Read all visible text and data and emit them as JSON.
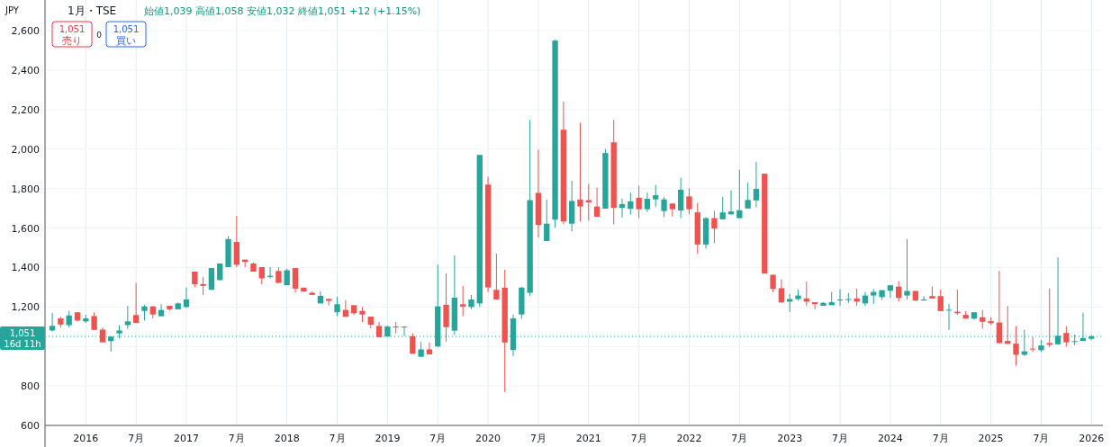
{
  "chart_data": {
    "type": "candlestick",
    "title": "1月・TSE",
    "subtitle": "始値1,039 高値1,058 安値1,032 終値1,051 +12 (+1.15%)",
    "ylabel": "JPY",
    "annotations": [
      "1,051 売り",
      "0",
      "1,051 買い",
      "16d 11h"
    ],
    "x": [
      "2015-09",
      "2015-10",
      "2015-11",
      "2015-12",
      "2016-01",
      "2016-02",
      "2016-03",
      "2016-04",
      "2016-05",
      "2016-06",
      "2016-07",
      "2016-08",
      "2016-09",
      "2016-10",
      "2016-11",
      "2016-12",
      "2017-01",
      "2017-02",
      "2017-03",
      "2017-04",
      "2017-05",
      "2017-06",
      "2017-07",
      "2017-08",
      "2017-09",
      "2017-10",
      "2017-11",
      "2017-12",
      "2018-01",
      "2018-02",
      "2018-03",
      "2018-04",
      "2018-05",
      "2018-06",
      "2018-07",
      "2018-08",
      "2018-09",
      "2018-10",
      "2018-11",
      "2018-12",
      "2019-01",
      "2019-02",
      "2019-03",
      "2019-04",
      "2019-05",
      "2019-06",
      "2019-07",
      "2019-08",
      "2019-09",
      "2019-10",
      "2019-11",
      "2019-12",
      "2020-01",
      "2020-02",
      "2020-03",
      "2020-04",
      "2020-05",
      "2020-06",
      "2020-07",
      "2020-08",
      "2020-09",
      "2020-10",
      "2020-11",
      "2020-12",
      "2021-01",
      "2021-02",
      "2021-03",
      "2021-04",
      "2021-05",
      "2021-06",
      "2021-07",
      "2021-08",
      "2021-09",
      "2021-10",
      "2021-11",
      "2021-12",
      "2022-01",
      "2022-02",
      "2022-03",
      "2022-04",
      "2022-05",
      "2022-06",
      "2022-07",
      "2022-08",
      "2022-09",
      "2022-10",
      "2022-11",
      "2022-12",
      "2023-01",
      "2023-02",
      "2023-03",
      "2023-04",
      "2023-05",
      "2023-06",
      "2023-07",
      "2023-08",
      "2023-09",
      "2023-10",
      "2023-11",
      "2023-12",
      "2024-01",
      "2024-02",
      "2024-03",
      "2024-04",
      "2024-05",
      "2024-06",
      "2024-07",
      "2024-08",
      "2024-09",
      "2024-10",
      "2024-11",
      "2024-12",
      "2025-01",
      "2025-02",
      "2025-03",
      "2025-04",
      "2025-05",
      "2025-06",
      "2025-07",
      "2025-08",
      "2025-09",
      "2025-10",
      "2025-11",
      "2025-12",
      "2026-01"
    ],
    "ohlc": [
      [
        1081,
        1170,
        1075,
        1104
      ],
      [
        1142,
        1150,
        1096,
        1111
      ],
      [
        1108,
        1180,
        1096,
        1157
      ],
      [
        1173,
        1173,
        1127,
        1131
      ],
      [
        1127,
        1160,
        1119,
        1142
      ],
      [
        1154,
        1173,
        1084,
        1084
      ],
      [
        1085,
        1096,
        1021,
        1021
      ],
      [
        1027,
        1050,
        974,
        1050
      ],
      [
        1066,
        1108,
        1040,
        1081
      ],
      [
        1108,
        1206,
        1089,
        1127
      ],
      [
        1159,
        1321,
        1119,
        1119
      ],
      [
        1180,
        1211,
        1131,
        1203
      ],
      [
        1203,
        1203,
        1142,
        1162
      ],
      [
        1153,
        1214,
        1153,
        1185
      ],
      [
        1206,
        1206,
        1183,
        1188
      ],
      [
        1188,
        1223,
        1188,
        1218
      ],
      [
        1200,
        1298,
        1195,
        1238
      ],
      [
        1379,
        1379,
        1299,
        1315
      ],
      [
        1316,
        1353,
        1260,
        1307
      ],
      [
        1287,
        1397,
        1287,
        1397
      ],
      [
        1336,
        1420,
        1336,
        1420
      ],
      [
        1402,
        1559,
        1402,
        1544
      ],
      [
        1529,
        1661,
        1402,
        1414
      ],
      [
        1440,
        1440,
        1402,
        1428
      ],
      [
        1420,
        1425,
        1379,
        1379
      ],
      [
        1402,
        1402,
        1315,
        1345
      ],
      [
        1352,
        1402,
        1345,
        1358
      ],
      [
        1382,
        1402,
        1322,
        1322
      ],
      [
        1310,
        1394,
        1310,
        1386
      ],
      [
        1397,
        1397,
        1272,
        1293
      ],
      [
        1298,
        1298,
        1278,
        1278
      ],
      [
        1272,
        1278,
        1261,
        1261
      ],
      [
        1218,
        1279,
        1218,
        1256
      ],
      [
        1241,
        1241,
        1208,
        1231
      ],
      [
        1173,
        1252,
        1153,
        1214
      ],
      [
        1185,
        1234,
        1150,
        1150
      ],
      [
        1209,
        1209,
        1160,
        1168
      ],
      [
        1180,
        1200,
        1124,
        1162
      ],
      [
        1151,
        1151,
        1092,
        1110
      ],
      [
        1104,
        1124,
        1047,
        1047
      ],
      [
        1050,
        1105,
        1050,
        1101
      ],
      [
        1101,
        1124,
        1066,
        1098
      ],
      [
        1098,
        1101,
        1053,
        1101
      ],
      [
        1052,
        1066,
        963,
        963
      ],
      [
        948,
        1023,
        948,
        985
      ],
      [
        985,
        1020,
        960,
        960
      ],
      [
        1000,
        1415,
        997,
        1203
      ],
      [
        1211,
        1371,
        1025,
        1098
      ],
      [
        1080,
        1462,
        1058,
        1247
      ],
      [
        1214,
        1307,
        1153,
        1202
      ],
      [
        1200,
        1261,
        1189,
        1238
      ],
      [
        1218,
        1970,
        1200,
        1970
      ],
      [
        1820,
        1859,
        1276,
        1299
      ],
      [
        1287,
        1470,
        1238,
        1238
      ],
      [
        1298,
        1389,
        769,
        1020
      ],
      [
        982,
        1162,
        952,
        1142
      ],
      [
        1162,
        1302,
        1139,
        1298
      ],
      [
        1272,
        2148,
        1256,
        1741
      ],
      [
        1778,
        1997,
        1551,
        1615
      ],
      [
        1534,
        1744,
        1534,
        1622
      ],
      [
        1642,
        2555,
        1602,
        2549
      ],
      [
        2098,
        2240,
        1619,
        1633
      ],
      [
        1622,
        1840,
        1584,
        1737
      ],
      [
        1744,
        2133,
        1633,
        1709
      ],
      [
        1741,
        1823,
        1637,
        1730
      ],
      [
        1709,
        1805,
        1657,
        1657
      ],
      [
        1698,
        2000,
        1698,
        1980
      ],
      [
        2034,
        2148,
        1619,
        1702
      ],
      [
        1702,
        1749,
        1653,
        1721
      ],
      [
        1697,
        1778,
        1668,
        1735
      ],
      [
        1753,
        1815,
        1650,
        1695
      ],
      [
        1695,
        1779,
        1681,
        1748
      ],
      [
        1745,
        1818,
        1708,
        1766
      ],
      [
        1686,
        1757,
        1655,
        1745
      ],
      [
        1724,
        1724,
        1658,
        1695
      ],
      [
        1689,
        1855,
        1650,
        1794
      ],
      [
        1760,
        1800,
        1669,
        1695
      ],
      [
        1679,
        1727,
        1470,
        1516
      ],
      [
        1516,
        1655,
        1495,
        1650
      ],
      [
        1650,
        1687,
        1525,
        1597
      ],
      [
        1644,
        1757,
        1644,
        1679
      ],
      [
        1669,
        1791,
        1669,
        1684
      ],
      [
        1650,
        1895,
        1650,
        1690
      ],
      [
        1699,
        1830,
        1699,
        1742
      ],
      [
        1740,
        1936,
        1704,
        1798
      ],
      [
        1875,
        1875,
        1369,
        1369
      ],
      [
        1363,
        1363,
        1276,
        1292
      ],
      [
        1295,
        1340,
        1220,
        1223
      ],
      [
        1227,
        1265,
        1174,
        1240
      ],
      [
        1240,
        1288,
        1233,
        1258
      ],
      [
        1243,
        1329,
        1205,
        1227
      ],
      [
        1224,
        1224,
        1188,
        1214
      ],
      [
        1206,
        1224,
        1206,
        1221
      ],
      [
        1209,
        1276,
        1209,
        1224
      ],
      [
        1235,
        1291,
        1205,
        1238
      ],
      [
        1235,
        1270,
        1220,
        1240
      ],
      [
        1243,
        1293,
        1205,
        1227
      ],
      [
        1218,
        1276,
        1205,
        1258
      ],
      [
        1258,
        1291,
        1215,
        1276
      ],
      [
        1250,
        1285,
        1235,
        1285
      ],
      [
        1282,
        1310,
        1246,
        1310
      ],
      [
        1303,
        1331,
        1227,
        1246
      ],
      [
        1258,
        1544,
        1238,
        1281
      ],
      [
        1281,
        1281,
        1230,
        1233
      ],
      [
        1233,
        1255,
        1233,
        1238
      ],
      [
        1255,
        1303,
        1243,
        1243
      ],
      [
        1255,
        1288,
        1179,
        1179
      ],
      [
        1183,
        1215,
        1083,
        1186
      ],
      [
        1176,
        1288,
        1159,
        1168
      ],
      [
        1160,
        1179,
        1141,
        1141
      ],
      [
        1141,
        1174,
        1136,
        1173
      ],
      [
        1148,
        1185,
        1090,
        1125
      ],
      [
        1128,
        1148,
        1109,
        1118
      ],
      [
        1121,
        1383,
        1014,
        1017
      ],
      [
        1028,
        1205,
        1013,
        1013
      ],
      [
        1014,
        1103,
        903,
        958
      ],
      [
        958,
        1084,
        951,
        975
      ],
      [
        989,
        1048,
        972,
        987
      ],
      [
        981,
        1033,
        972,
        1005
      ],
      [
        1017,
        1294,
        996,
        1008
      ],
      [
        1011,
        1452,
        1008,
        1054
      ],
      [
        1068,
        1103,
        999,
        1021
      ],
      [
        1024,
        1060,
        1006,
        1027
      ],
      [
        1028,
        1171,
        1028,
        1043
      ],
      [
        1039,
        1058,
        1032,
        1051
      ]
    ],
    "xlim": [
      "2015-08-05",
      "2026-02-12"
    ],
    "ylim": [
      600,
      2755
    ],
    "xticks": [
      {
        "value": "2016-01",
        "label": "2016"
      },
      {
        "value": "2016-07",
        "label": "7月"
      },
      {
        "value": "2017-01",
        "label": "2017"
      },
      {
        "value": "2017-07",
        "label": "7月"
      },
      {
        "value": "2018-01",
        "label": "2018"
      },
      {
        "value": "2018-07",
        "label": "7月"
      },
      {
        "value": "2019-01",
        "label": "2019"
      },
      {
        "value": "2019-07",
        "label": "7月"
      },
      {
        "value": "2020-01",
        "label": "2020"
      },
      {
        "value": "2020-07",
        "label": "7月"
      },
      {
        "value": "2021-01",
        "label": "2021"
      },
      {
        "value": "2021-07",
        "label": "7月"
      },
      {
        "value": "2022-01",
        "label": "2022"
      },
      {
        "value": "2022-07",
        "label": "7月"
      },
      {
        "value": "2023-01",
        "label": "2023"
      },
      {
        "value": "2023-07",
        "label": "7月"
      },
      {
        "value": "2024-01",
        "label": "2024"
      },
      {
        "value": "2024-07",
        "label": "7月"
      },
      {
        "value": "2025-01",
        "label": "2025"
      },
      {
        "value": "2025-07",
        "label": "7月"
      },
      {
        "value": "2026-01",
        "label": "2026"
      }
    ],
    "yticks": [
      600,
      800,
      {
        "value": 1000,
        "label": null
      },
      {
        "value": 1200,
        "label": "1,200"
      },
      {
        "value": 1400,
        "label": "1,400"
      },
      {
        "value": 1600,
        "label": "1,600"
      },
      {
        "value": 1800,
        "label": "1,800"
      },
      {
        "value": 2000,
        "label": "2,000"
      },
      {
        "value": 2200,
        "label": "2,200"
      },
      {
        "value": 2400,
        "label": "2,400"
      },
      {
        "value": 2600,
        "label": "2,600"
      }
    ],
    "grid": true,
    "ref_lines": [
      {
        "axis": "y",
        "value": 1051,
        "label": "1,051",
        "color": "#26a69a",
        "line_style": "dotted"
      }
    ]
  }
}
